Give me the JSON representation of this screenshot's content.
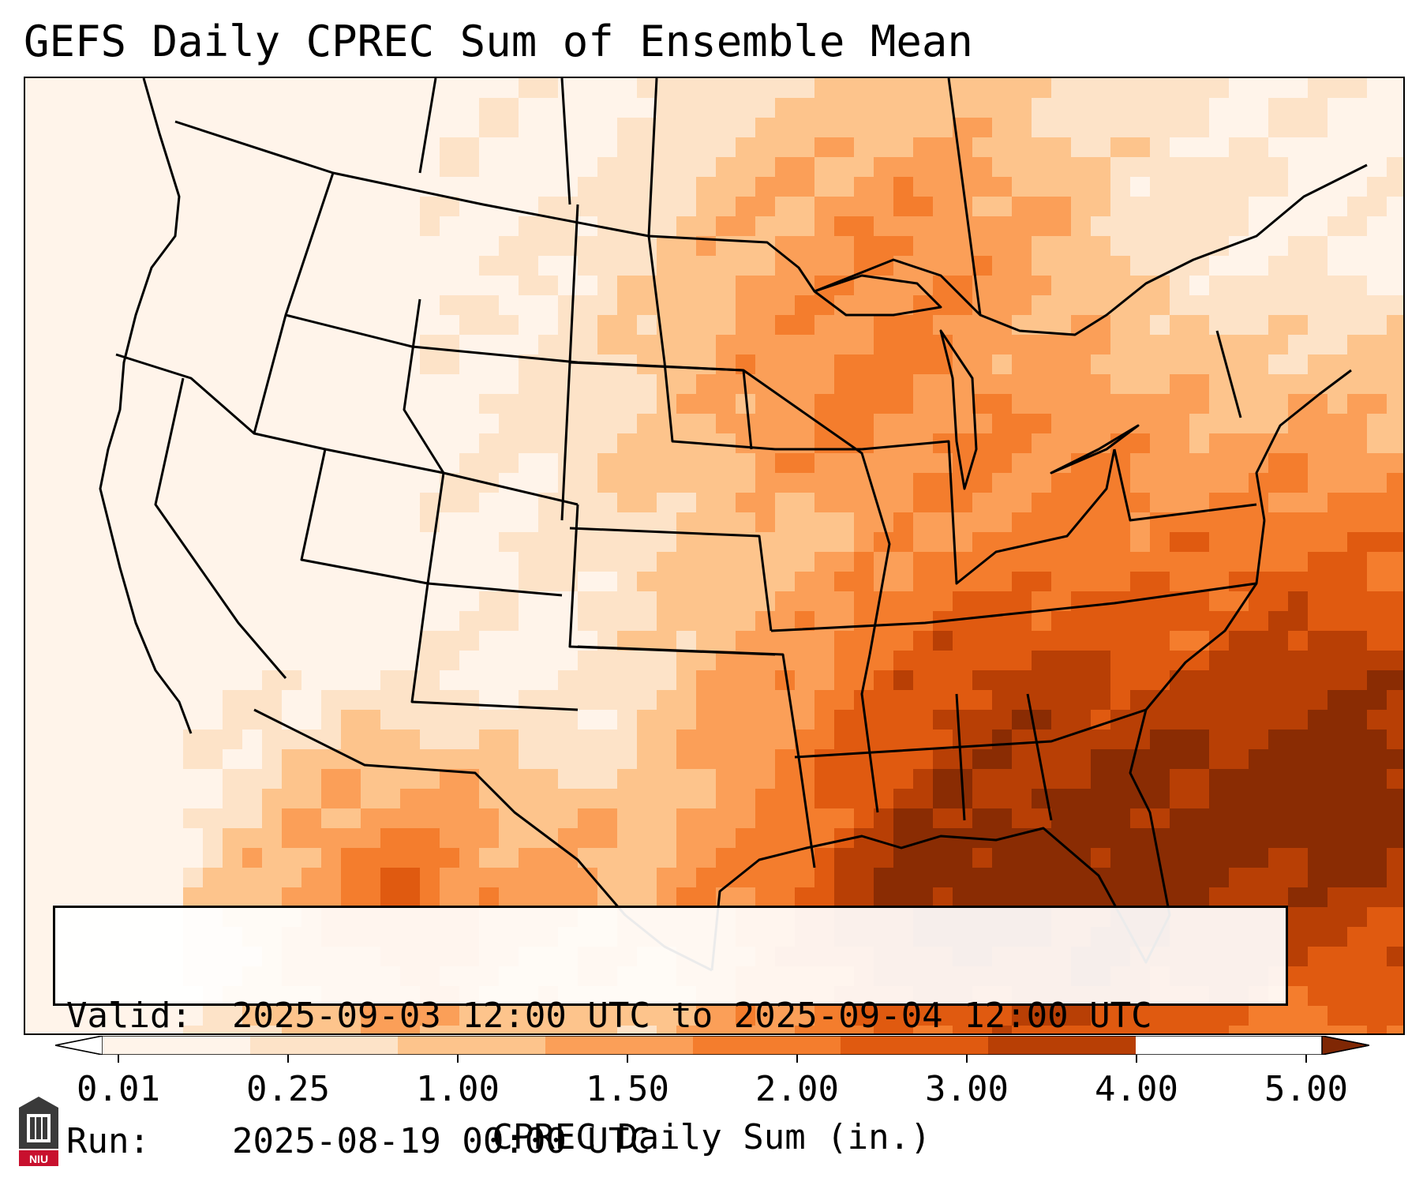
{
  "title": "GEFS Daily CPREC Sum of Ensemble Mean",
  "info": {
    "valid_label": "Valid:",
    "valid_value": "2025-09-03 12:00 UTC to 2025-09-04 12:00 UTC",
    "run_label": "Run:",
    "run_value": "2025-08-19 00:00 UTC"
  },
  "colorbar": {
    "title": "CPREC Daily Sum (in.)",
    "ticks": [
      "0.01",
      "0.25",
      "1.00",
      "1.50",
      "2.00",
      "3.00",
      "4.00",
      "5.00"
    ],
    "colors": [
      "#fff4ea",
      "#fde3c8",
      "#fdc48c",
      "#fb9f58",
      "#f47d2d",
      "#e05a10",
      "#b83f05",
      "#8a2c03"
    ],
    "under_color": "#ffffff",
    "over_color": "#7f2704"
  },
  "map": {
    "projection": "lambert-conformal",
    "region": "CONUS",
    "field": "CPREC",
    "ocean_color": "#fff5eb"
  },
  "logo": {
    "text": "NIU",
    "color": "#c8102e"
  }
}
